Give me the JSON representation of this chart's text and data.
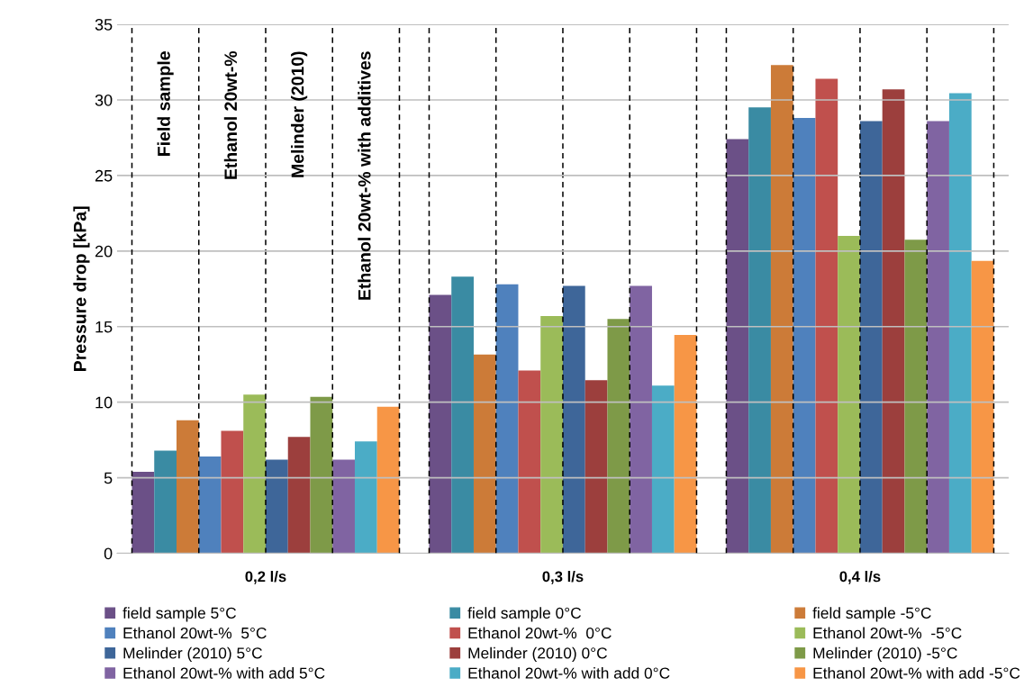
{
  "chart_data": {
    "type": "bar",
    "ylabel": "Pressure drop [kPa]",
    "categories": [
      "0,2 l/s",
      "0,3 l/s",
      "0,4 l/s"
    ],
    "series": [
      {
        "name": "field sample 5°C",
        "color": "#6b5087",
        "values": [
          5.4,
          17.1,
          27.4
        ]
      },
      {
        "name": "field sample 0°C",
        "color": "#3a8ba3",
        "values": [
          6.8,
          18.3,
          29.5
        ]
      },
      {
        "name": "field sample -5°C",
        "color": "#cc7b38",
        "values": [
          8.8,
          13.15,
          32.3
        ]
      },
      {
        "name": "Ethanol 20wt-%  5°C",
        "color": "#4f81bd",
        "values": [
          6.4,
          17.8,
          28.8
        ]
      },
      {
        "name": "Ethanol 20wt-%  0°C",
        "color": "#c0504d",
        "values": [
          8.1,
          12.1,
          31.4
        ]
      },
      {
        "name": "Ethanol 20wt-%  -5°C",
        "color": "#9bbb59",
        "values": [
          10.5,
          15.7,
          21.0
        ]
      },
      {
        "name": "Melinder (2010) 5°C",
        "color": "#3e6699",
        "values": [
          6.2,
          17.7,
          28.6
        ]
      },
      {
        "name": "Melinder (2010) 0°C",
        "color": "#9c3f3d",
        "values": [
          7.7,
          11.45,
          30.7
        ]
      },
      {
        "name": "Melinder (2010) -5°C",
        "color": "#7e9a48",
        "values": [
          10.35,
          15.5,
          20.75
        ]
      },
      {
        "name": "Ethanol 20wt-% with add 5°C",
        "color": "#8064a2",
        "values": [
          6.2,
          17.7,
          28.6
        ]
      },
      {
        "name": "Ethanol 20wt-% with add 0°C",
        "color": "#4bacc6",
        "values": [
          7.4,
          11.1,
          30.45
        ]
      },
      {
        "name": "Ethanol 20wt-% with add -5°C",
        "color": "#f79646",
        "values": [
          9.7,
          14.45,
          19.35
        ]
      }
    ],
    "ylim": [
      0,
      35
    ],
    "yticks": [
      0,
      5,
      10,
      15,
      20,
      25,
      30,
      35
    ],
    "grid": true,
    "legend": "bottom",
    "annotations": [
      "Field sample",
      "Ethanol 20wt-%",
      "Melinder (2010)",
      "Ethanol 20wt-% with additives"
    ]
  }
}
